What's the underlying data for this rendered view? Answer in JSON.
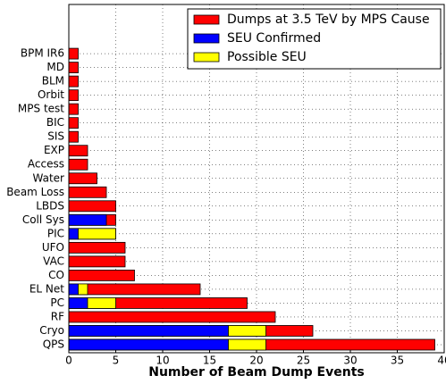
{
  "chart_data": {
    "type": "barh",
    "xlabel": "Number of Beam Dump Events",
    "categories": [
      "QPS",
      "Cryo",
      "RF",
      "PC",
      "EL Net",
      "CO",
      "VAC",
      "UFO",
      "PIC",
      "Coll Sys",
      "LBDS",
      "Beam Loss",
      "Water",
      "Access",
      "EXP",
      "SIS",
      "BIC",
      "MPS test",
      "Orbit",
      "BLM",
      "MD",
      "BPM IR6"
    ],
    "series": [
      {
        "name": "Dumps at 3.5 TeV by MPS Cause",
        "color": "#ff0000",
        "values": [
          39,
          26,
          22,
          19,
          14,
          7,
          6,
          6,
          5,
          5,
          5,
          4,
          3,
          2,
          2,
          1,
          1,
          1,
          1,
          1,
          1,
          1
        ]
      },
      {
        "name": "SEU Confirmed",
        "color": "#0000ff",
        "values": [
          17,
          17,
          0,
          2,
          1,
          0,
          0,
          0,
          1,
          4,
          0,
          0,
          0,
          0,
          0,
          0,
          0,
          0,
          0,
          0,
          0,
          0
        ]
      },
      {
        "name": "Possible SEU",
        "color": "#ffff00",
        "values": [
          4,
          4,
          0,
          3,
          1,
          0,
          0,
          0,
          4,
          0,
          0,
          0,
          0,
          0,
          0,
          0,
          0,
          0,
          0,
          0,
          0,
          0
        ]
      }
    ],
    "xlim": [
      0,
      40
    ],
    "xticks": [
      0,
      5,
      10,
      15,
      20,
      25,
      30,
      35,
      40
    ],
    "grid": true,
    "legend": "upper right"
  }
}
